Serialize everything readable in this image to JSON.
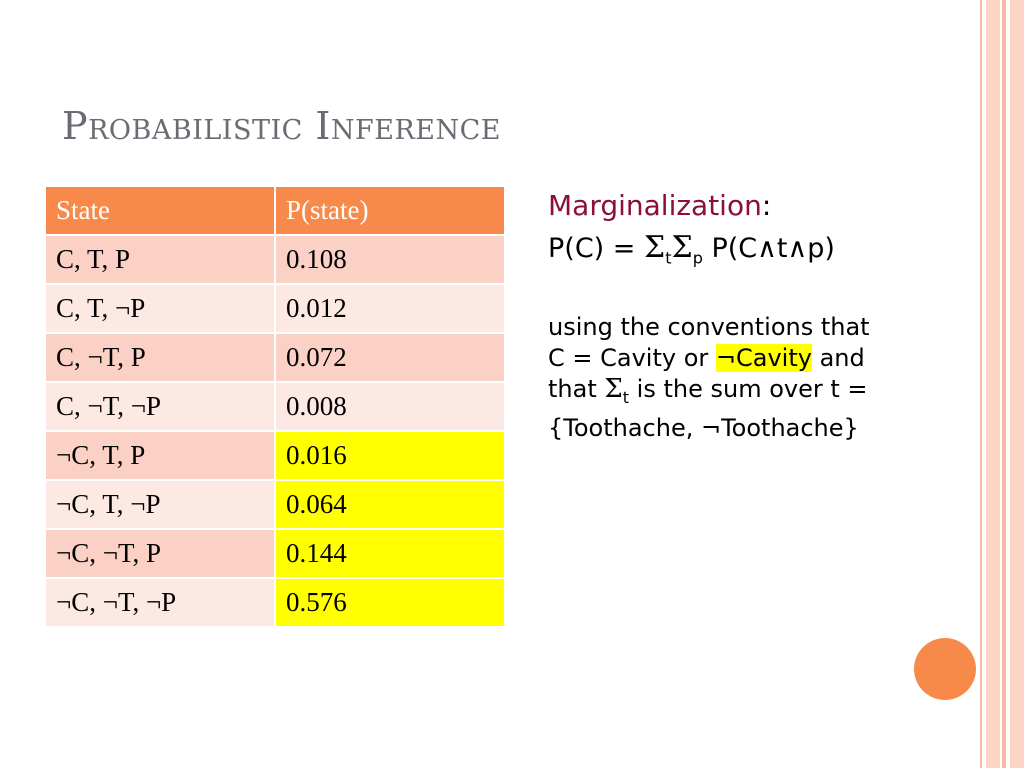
{
  "title": "Probabilistic Inference",
  "table": {
    "headers": [
      "State",
      "P(state)"
    ],
    "rows": [
      {
        "state": "C, T, P",
        "p": "0.108",
        "highlight": false
      },
      {
        "state": "C, T, ¬P",
        "p": "0.012",
        "highlight": false
      },
      {
        "state": "C, ¬T, P",
        "p": "0.072",
        "highlight": false
      },
      {
        "state": "C, ¬T, ¬P",
        "p": "0.008",
        "highlight": false
      },
      {
        "state": "¬C, T, P",
        "p": "0.016",
        "highlight": true
      },
      {
        "state": "¬C, T, ¬P",
        "p": "0.064",
        "highlight": true
      },
      {
        "state": "¬C, ¬T, P",
        "p": "0.144",
        "highlight": true
      },
      {
        "state": "¬C, ¬T, ¬P",
        "p": "0.576",
        "highlight": true
      }
    ]
  },
  "right": {
    "marg_word": "Marginalization",
    "marg_colon": ":",
    "formula": {
      "lhs": "P(C) = ",
      "sigma": "Σ",
      "sub_t": "t",
      "sub_p": "p",
      "rhs": " P(C∧t∧p)"
    },
    "para": {
      "line1": "using the conventions that",
      "line2a": "C = Cavity or ",
      "line2_highlight": "¬Cavity",
      "line2b": " and",
      "line3a": "that ",
      "line3_sub": "t",
      "line3b": " is the sum over t =",
      "line4": "{Toothache, ¬Toothache}"
    }
  },
  "colors": {
    "header_bg": "#f7894b",
    "row_odd": "#fbd1c5",
    "row_even": "#fde9e4",
    "highlight": "#ffff00",
    "title": "#6b6b73",
    "marg_word": "#8b1038"
  }
}
